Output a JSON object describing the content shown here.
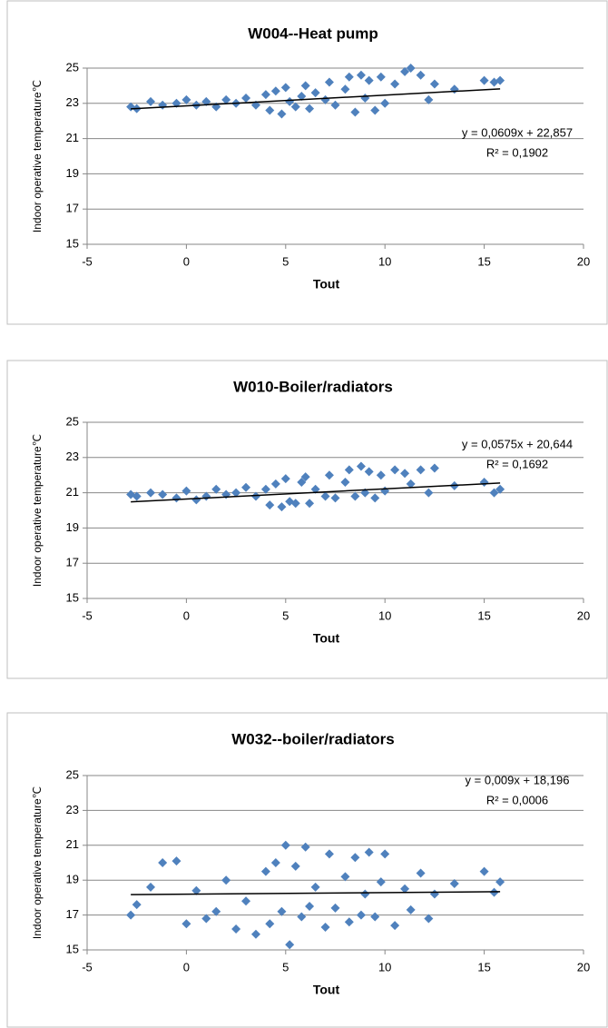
{
  "chart_data": [
    {
      "type": "scatter",
      "title": "W004--Heat pump",
      "xlabel": "Tout",
      "ylabel": "Indoor operative temperature℃",
      "xlim": [
        -5,
        20
      ],
      "xticks": [
        -5,
        0,
        5,
        10,
        15,
        20
      ],
      "ylim": [
        15,
        25
      ],
      "yticks": [
        15,
        17,
        19,
        21,
        23,
        25
      ],
      "grid": true,
      "series": [
        {
          "color": "#4f81bd",
          "x": [
            -2.8,
            -2.5,
            -1.8,
            -1.2,
            -0.5,
            0,
            0.5,
            1,
            1.5,
            2,
            2.5,
            3,
            3.5,
            4,
            4.2,
            4.5,
            4.8,
            5,
            5.2,
            5.5,
            5.8,
            6,
            6.2,
            6.5,
            7,
            7.2,
            7.5,
            8,
            8.2,
            8.5,
            8.8,
            9,
            9.2,
            9.5,
            9.8,
            10,
            10.5,
            11,
            11.3,
            11.8,
            12.2,
            12.5,
            13.5,
            15,
            15.5,
            15.8
          ],
          "values": [
            22.8,
            22.7,
            23.1,
            22.9,
            23.0,
            23.2,
            22.9,
            23.1,
            22.8,
            23.2,
            23.0,
            23.3,
            22.9,
            23.5,
            22.6,
            23.7,
            22.4,
            23.9,
            23.1,
            22.8,
            23.4,
            24.0,
            22.7,
            23.6,
            23.2,
            24.2,
            22.9,
            23.8,
            24.5,
            22.5,
            24.6,
            23.3,
            24.3,
            22.6,
            24.5,
            23.0,
            24.1,
            24.8,
            25.0,
            24.6,
            23.2,
            24.1,
            23.8,
            24.3,
            24.2,
            24.3
          ]
        }
      ],
      "trendline": {
        "x": [
          -2.8,
          15.8
        ],
        "values": [
          22.687,
          23.819
        ]
      },
      "annotations": [
        "y = 0,0609x + 22,857",
        "R² = 0,1902"
      ]
    },
    {
      "type": "scatter",
      "title": "W010-Boiler/radiators",
      "xlabel": "Tout",
      "ylabel": "Indoor operative temperature℃",
      "xlim": [
        -5,
        20
      ],
      "xticks": [
        -5,
        0,
        5,
        10,
        15,
        20
      ],
      "ylim": [
        15,
        25
      ],
      "yticks": [
        15,
        17,
        19,
        21,
        23,
        25
      ],
      "grid": true,
      "series": [
        {
          "color": "#4f81bd",
          "x": [
            -2.8,
            -2.5,
            -1.8,
            -1.2,
            -0.5,
            0,
            0.5,
            1,
            1.5,
            2,
            2.5,
            3,
            3.5,
            4,
            4.2,
            4.5,
            4.8,
            5,
            5.2,
            5.5,
            5.8,
            6,
            6.2,
            6.5,
            7,
            7.2,
            7.5,
            8,
            8.2,
            8.5,
            8.8,
            9,
            9.2,
            9.5,
            9.8,
            10,
            10.5,
            11,
            11.3,
            11.8,
            12.2,
            12.5,
            13.5,
            15,
            15.5,
            15.8
          ],
          "values": [
            20.9,
            20.8,
            21.0,
            20.9,
            20.7,
            21.1,
            20.6,
            20.8,
            21.2,
            20.9,
            21.0,
            21.3,
            20.8,
            21.2,
            20.3,
            21.5,
            20.2,
            21.8,
            20.5,
            20.4,
            21.6,
            21.9,
            20.4,
            21.2,
            20.8,
            22.0,
            20.7,
            21.6,
            22.3,
            20.8,
            22.5,
            21.0,
            22.2,
            20.7,
            22.0,
            21.1,
            22.3,
            22.1,
            21.5,
            22.3,
            21.0,
            22.4,
            21.4,
            21.6,
            21.0,
            21.2
          ]
        }
      ],
      "trendline": {
        "x": [
          -2.8,
          15.8
        ],
        "values": [
          20.483,
          21.553
        ]
      },
      "annotations": [
        "y = 0,0575x + 20,644",
        "R² = 0,1692"
      ]
    },
    {
      "type": "scatter",
      "title": "W032--boiler/radiators",
      "xlabel": "Tout",
      "ylabel": "Indoor operative temperature℃",
      "xlim": [
        -5,
        20
      ],
      "xticks": [
        -5,
        0,
        5,
        10,
        15,
        20
      ],
      "ylim": [
        15,
        25
      ],
      "yticks": [
        15,
        17,
        19,
        21,
        23,
        25
      ],
      "grid": true,
      "series": [
        {
          "color": "#4f81bd",
          "x": [
            -2.8,
            -2.5,
            -1.8,
            -1.2,
            -0.5,
            0,
            0.5,
            1,
            1.5,
            2,
            2.5,
            3,
            3.5,
            4,
            4.2,
            4.5,
            4.8,
            5,
            5.2,
            5.5,
            5.8,
            6,
            6.2,
            6.5,
            7,
            7.2,
            7.5,
            8,
            8.2,
            8.5,
            8.8,
            9,
            9.2,
            9.5,
            9.8,
            10,
            10.5,
            11,
            11.3,
            11.8,
            12.2,
            12.5,
            13.5,
            15,
            15.5,
            15.8
          ],
          "values": [
            17.0,
            17.6,
            18.6,
            20.0,
            20.1,
            16.5,
            18.4,
            16.8,
            17.2,
            19.0,
            16.2,
            17.8,
            15.9,
            19.5,
            16.5,
            20.0,
            17.2,
            21.0,
            15.3,
            19.8,
            16.9,
            20.9,
            17.5,
            18.6,
            16.3,
            20.5,
            17.4,
            19.2,
            16.6,
            20.3,
            17.0,
            18.2,
            20.6,
            16.9,
            18.9,
            20.5,
            16.4,
            18.5,
            17.3,
            19.4,
            16.8,
            18.2,
            18.8,
            19.5,
            18.3,
            18.9
          ]
        }
      ],
      "trendline": {
        "x": [
          -2.8,
          15.8
        ],
        "values": [
          18.171,
          18.338
        ]
      },
      "annotations": [
        "y = 0,009x + 18,196",
        "R² = 0,0006"
      ]
    }
  ]
}
